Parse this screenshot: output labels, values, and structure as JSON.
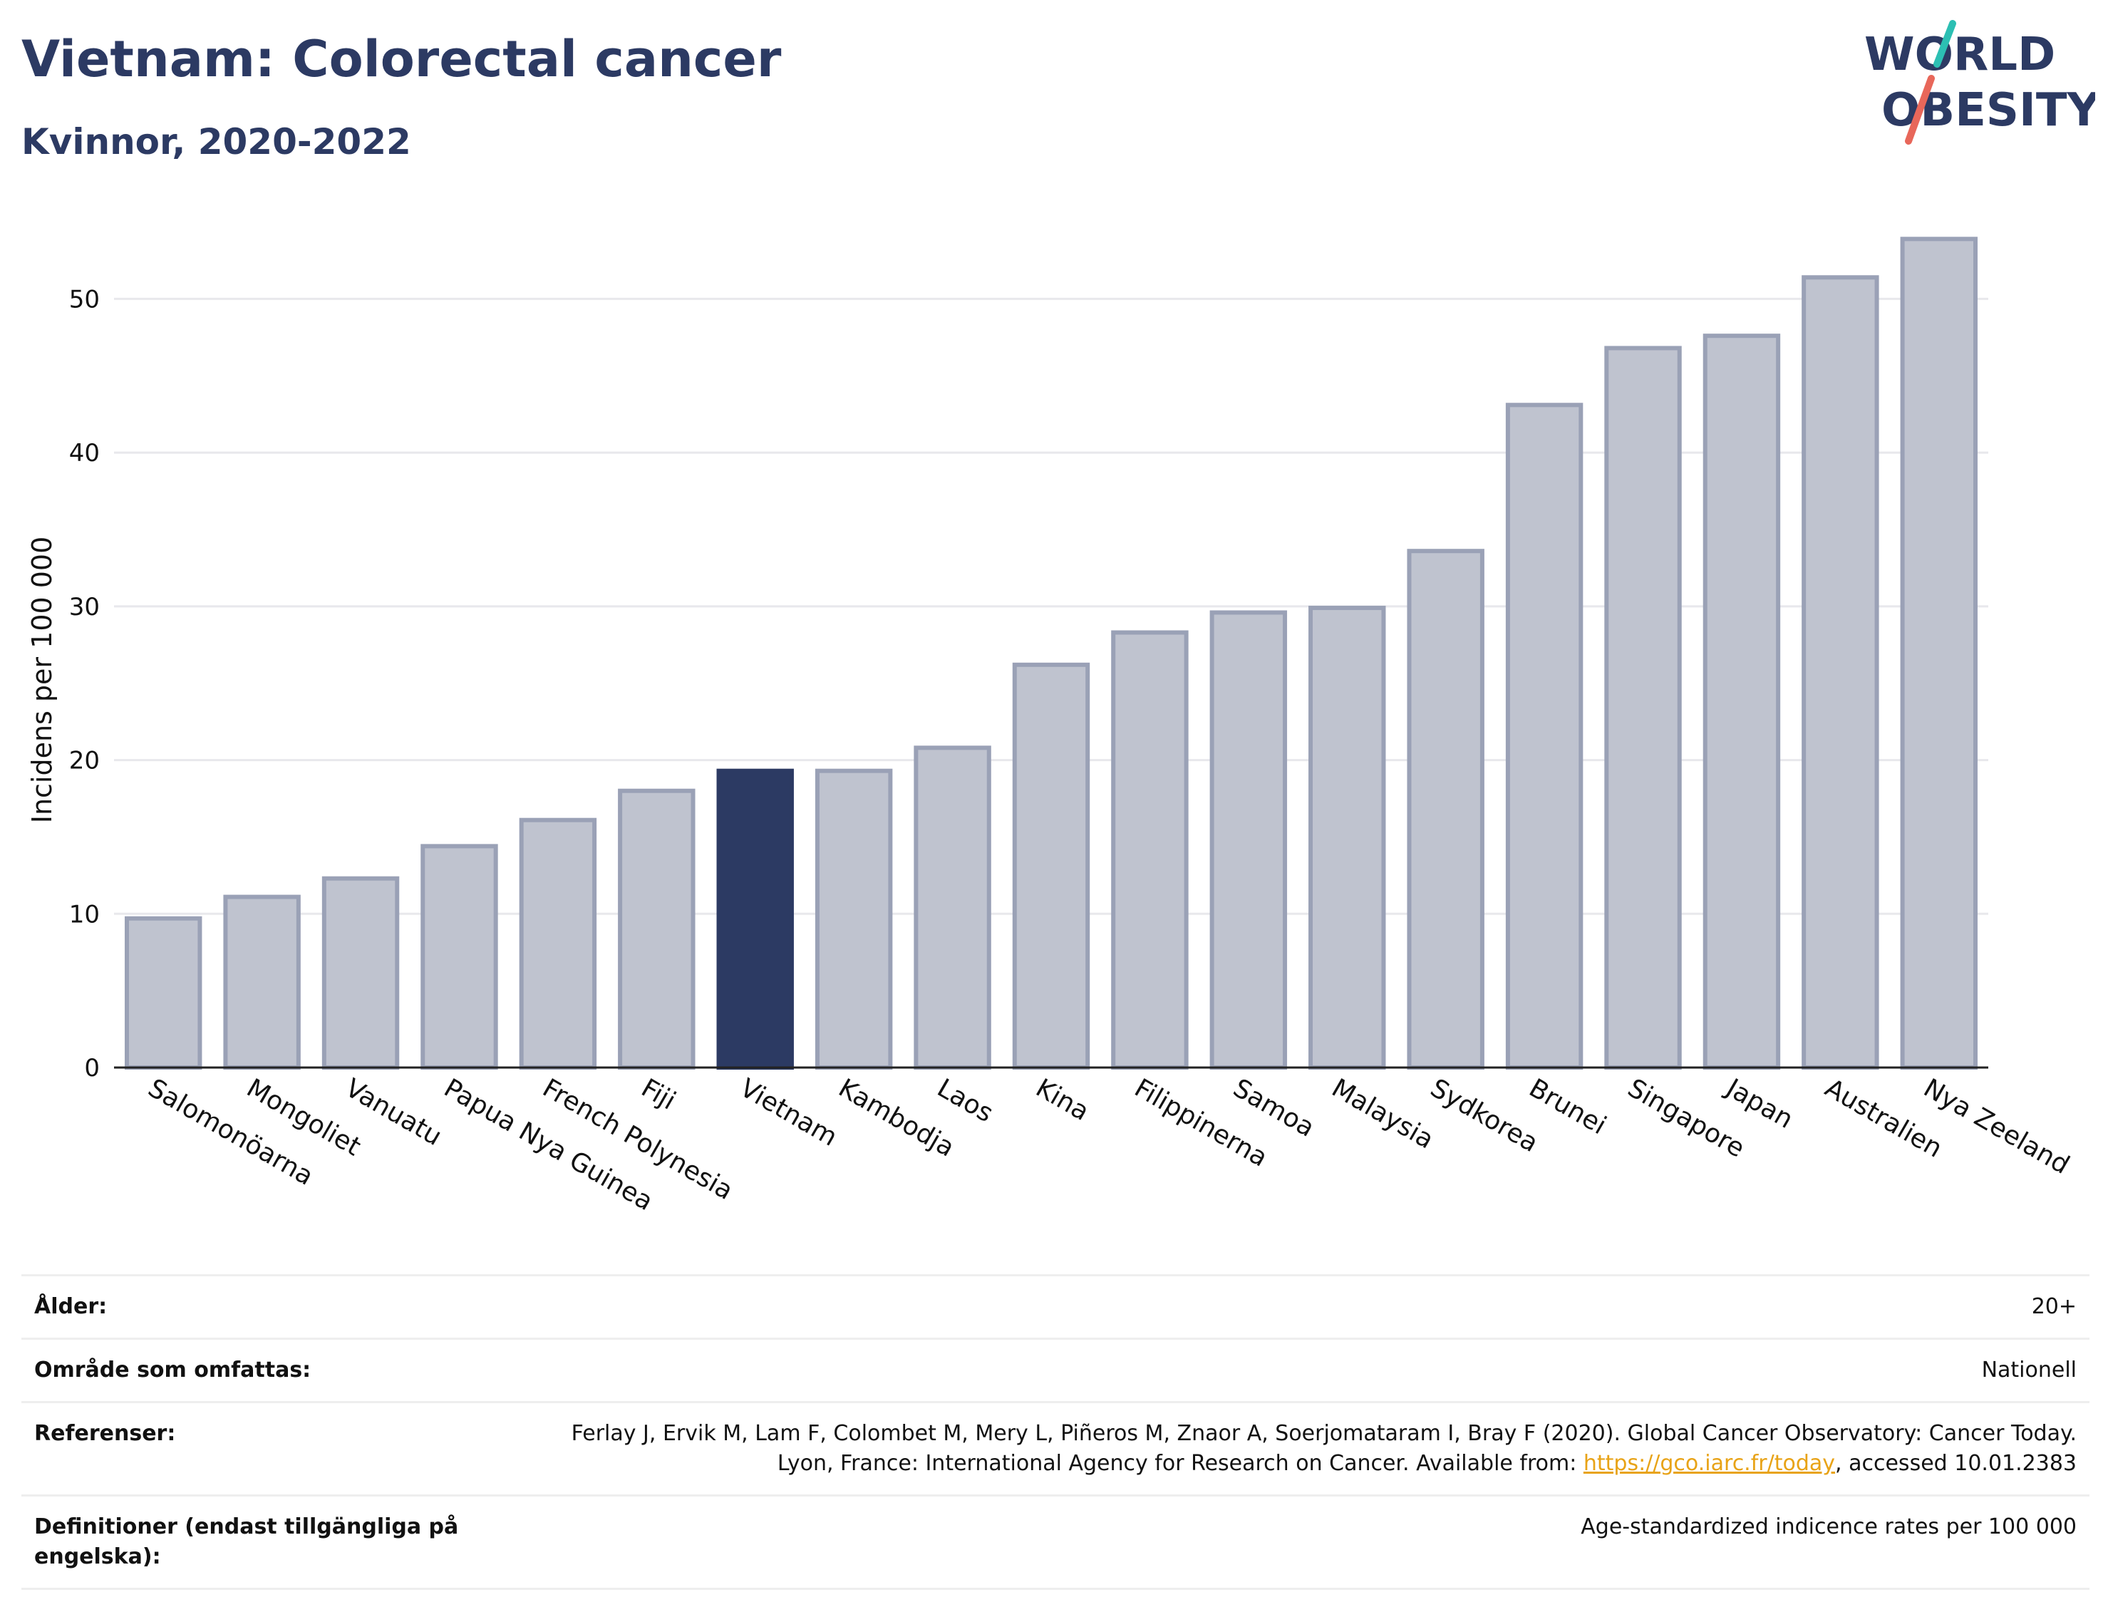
{
  "header": {
    "title": "Vietnam: Colorectal cancer",
    "subtitle": "Kvinnor, 2020-2022"
  },
  "logo": {
    "line1": "WORLD",
    "line2": "OBESITY",
    "slash_top_color": "#2cbfb3",
    "slash_bottom_color": "#e8675a",
    "text_color": "#2c3a63"
  },
  "colors": {
    "bar_default": "#bfc3cf",
    "bar_default_edge": "#9aa1b6",
    "bar_highlight": "#2c3a63",
    "grid": "#e8e8ec",
    "axis": "#222222"
  },
  "chart_data": {
    "type": "bar",
    "categories": [
      "Salomonöarna",
      "Mongoliet",
      "Vanuatu",
      "Papua Nya Guinea",
      "French Polynesia",
      "Fiji",
      "Vietnam",
      "Kambodja",
      "Laos",
      "Kina",
      "Filippinerna",
      "Samoa",
      "Malaysia",
      "Sydkorea",
      "Brunei",
      "Singapore",
      "Japan",
      "Australien",
      "Nya Zeeland"
    ],
    "values": [
      9.7,
      11.1,
      12.3,
      14.4,
      16.1,
      18.0,
      19.3,
      19.3,
      20.8,
      26.2,
      28.3,
      29.6,
      29.9,
      33.6,
      43.1,
      46.8,
      47.6,
      51.4,
      53.9
    ],
    "highlight": "Vietnam",
    "ylabel": "Incidens per 100 000",
    "xlabel": "",
    "ylim": [
      0,
      56
    ],
    "yticks": [
      0,
      10,
      20,
      30,
      40,
      50
    ],
    "grid": true,
    "legend": "none"
  },
  "meta": {
    "rows": [
      {
        "label": "Ålder:",
        "value": "20+"
      },
      {
        "label": "Område som omfattas:",
        "value": "Nationell"
      },
      {
        "label": "Referenser:",
        "value_pre": "Ferlay J, Ervik M, Lam F, Colombet M, Mery L, Piñeros M, Znaor A, Soerjomataram I, Bray F (2020). Global Cancer Observatory: Cancer Today. Lyon, France: International Agency for Research on Cancer. Available from: ",
        "link": "https://gco.iarc.fr/today",
        "value_post": ", accessed 10.01.2383"
      },
      {
        "label": "Definitioner (endast tillgängliga på engelska):",
        "value": "Age-standardized indicence rates per 100 000"
      }
    ]
  }
}
